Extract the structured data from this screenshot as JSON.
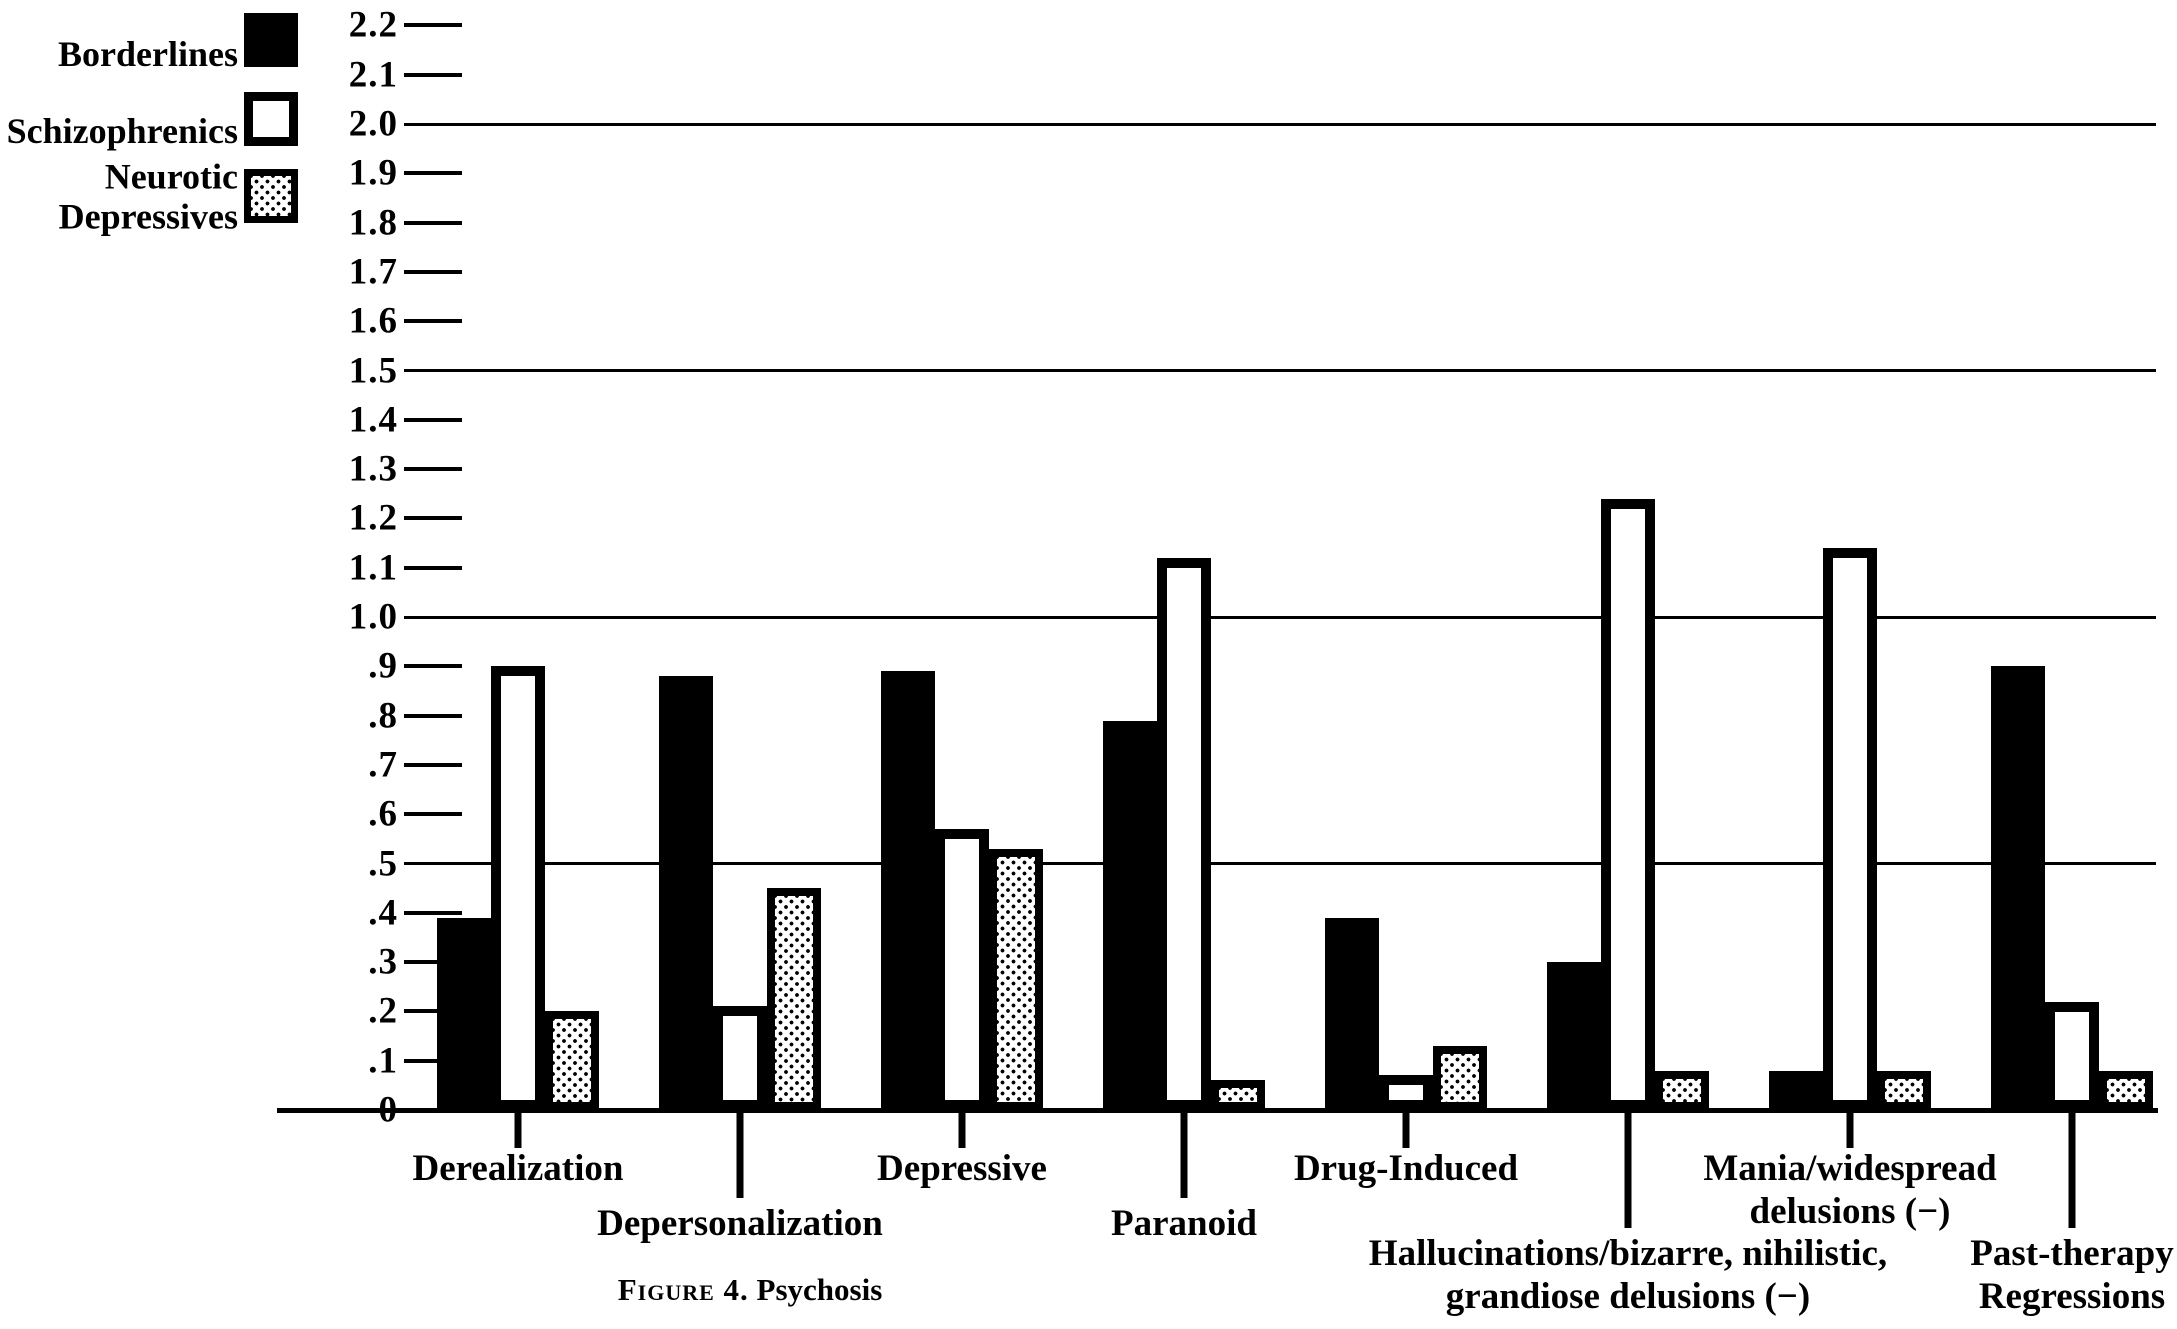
{
  "figure": {
    "caption_prefix": "Figure 4.",
    "caption_title": "Psychosis"
  },
  "colors": {
    "ink": "#000000",
    "paper": "#ffffff"
  },
  "legend": {
    "position": "top-left",
    "items": [
      {
        "label_lines": [
          "Borderlines"
        ],
        "swatch": "solid"
      },
      {
        "label_lines": [
          "Schizophrenics"
        ],
        "swatch": "outline"
      },
      {
        "label_lines": [
          "Neurotic",
          "Depressives"
        ],
        "swatch": "stipple"
      }
    ]
  },
  "axis": {
    "ytick_labels_top_to_bottom": [
      "2.2",
      "2.1",
      "2.0",
      "1.9",
      "1.8",
      "1.7",
      "1.6",
      "1.5",
      "1.4",
      "1.3",
      "1.2",
      "1.1",
      "1.0",
      ".9",
      ".8",
      ".7",
      ".6",
      ".5",
      ".4",
      ".3",
      ".2",
      ".1",
      "0"
    ]
  },
  "chart_data": {
    "type": "bar",
    "title": "Figure 4. Psychosis",
    "xlabel": "",
    "ylabel": "",
    "ylim": [
      0,
      2.2
    ],
    "ytick_step": 0.1,
    "grid": "horizontal rules at 0.5, 1.0, 1.5, 2.0; short dashes at every 0.1",
    "gridlines_at": [
      0.5,
      1.0,
      1.5,
      2.0
    ],
    "legend_position": "top-left",
    "categories": [
      {
        "label_lines": [
          "Derealization"
        ],
        "row": 1
      },
      {
        "label_lines": [
          "Depersonalization"
        ],
        "row": 2
      },
      {
        "label_lines": [
          "Depressive"
        ],
        "row": 1
      },
      {
        "label_lines": [
          "Paranoid"
        ],
        "row": 2
      },
      {
        "label_lines": [
          "Drug-Induced"
        ],
        "row": 1
      },
      {
        "label_lines": [
          "Hallucinations/bizarre, nihilistic,",
          "grandiose delusions (−)"
        ],
        "row": 2
      },
      {
        "label_lines": [
          "Mania/widespread",
          "delusions (−)"
        ],
        "row": 1
      },
      {
        "label_lines": [
          "Past-therapy",
          "Regressions"
        ],
        "row": 2
      }
    ],
    "series": [
      {
        "name": "Borderlines",
        "style": "solid-black",
        "values": [
          0.39,
          0.88,
          0.89,
          0.79,
          0.39,
          0.3,
          0.08,
          0.9
        ]
      },
      {
        "name": "Schizophrenics",
        "style": "white-outline",
        "values": [
          0.9,
          0.21,
          0.57,
          1.12,
          0.07,
          1.24,
          1.14,
          0.22
        ]
      },
      {
        "name": "Neurotic Depressives",
        "style": "stippled",
        "values": [
          0.2,
          0.45,
          0.53,
          0.06,
          0.13,
          0.08,
          0.08,
          0.08
        ]
      }
    ]
  }
}
